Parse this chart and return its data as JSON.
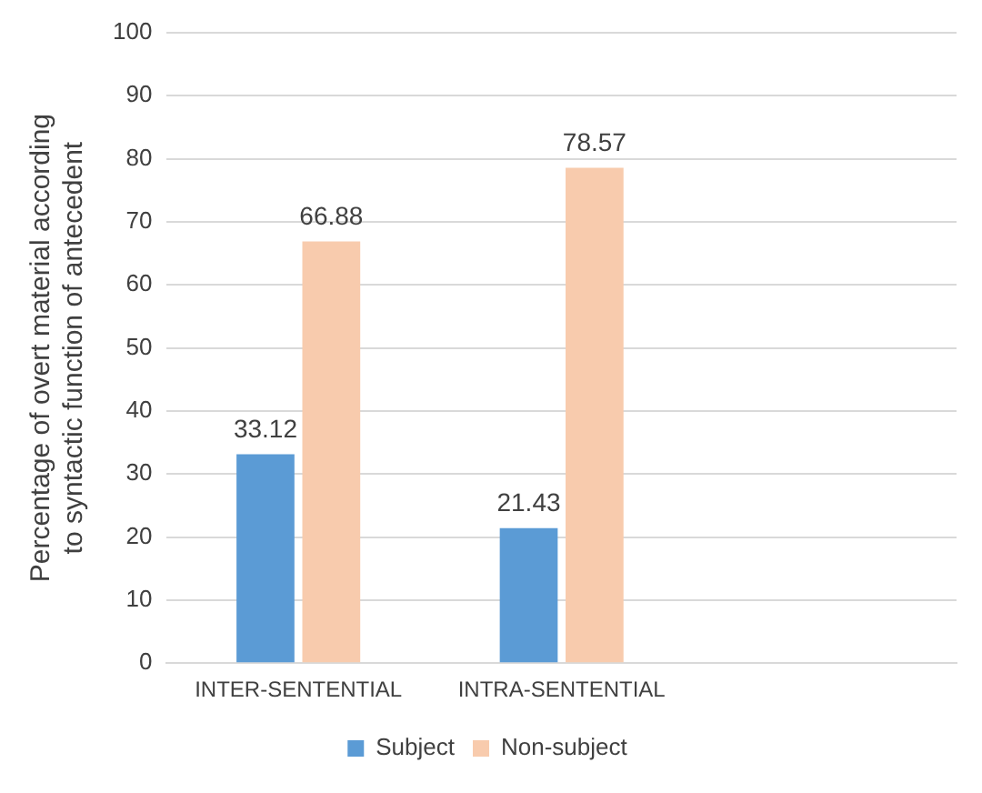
{
  "chart_data": {
    "type": "bar",
    "ylabel": "Percentage of overt material according to syntactic function of antecedent",
    "categories": [
      "INTER-SENTENTIAL",
      "INTRA-SENTENTIAL",
      null
    ],
    "series": [
      {
        "name": "Subject",
        "color": "#5b9bd5",
        "values": [
          33.12,
          21.43,
          null
        ]
      },
      {
        "name": "Non-subject",
        "color": "#f8cbad",
        "values": [
          66.88,
          78.57,
          null
        ]
      }
    ],
    "ylim": [
      0,
      100
    ],
    "yticks": [
      0,
      10,
      20,
      30,
      40,
      50,
      60,
      70,
      80,
      90,
      100
    ],
    "grid": "y",
    "legend": "bottom",
    "data_labels": true
  }
}
